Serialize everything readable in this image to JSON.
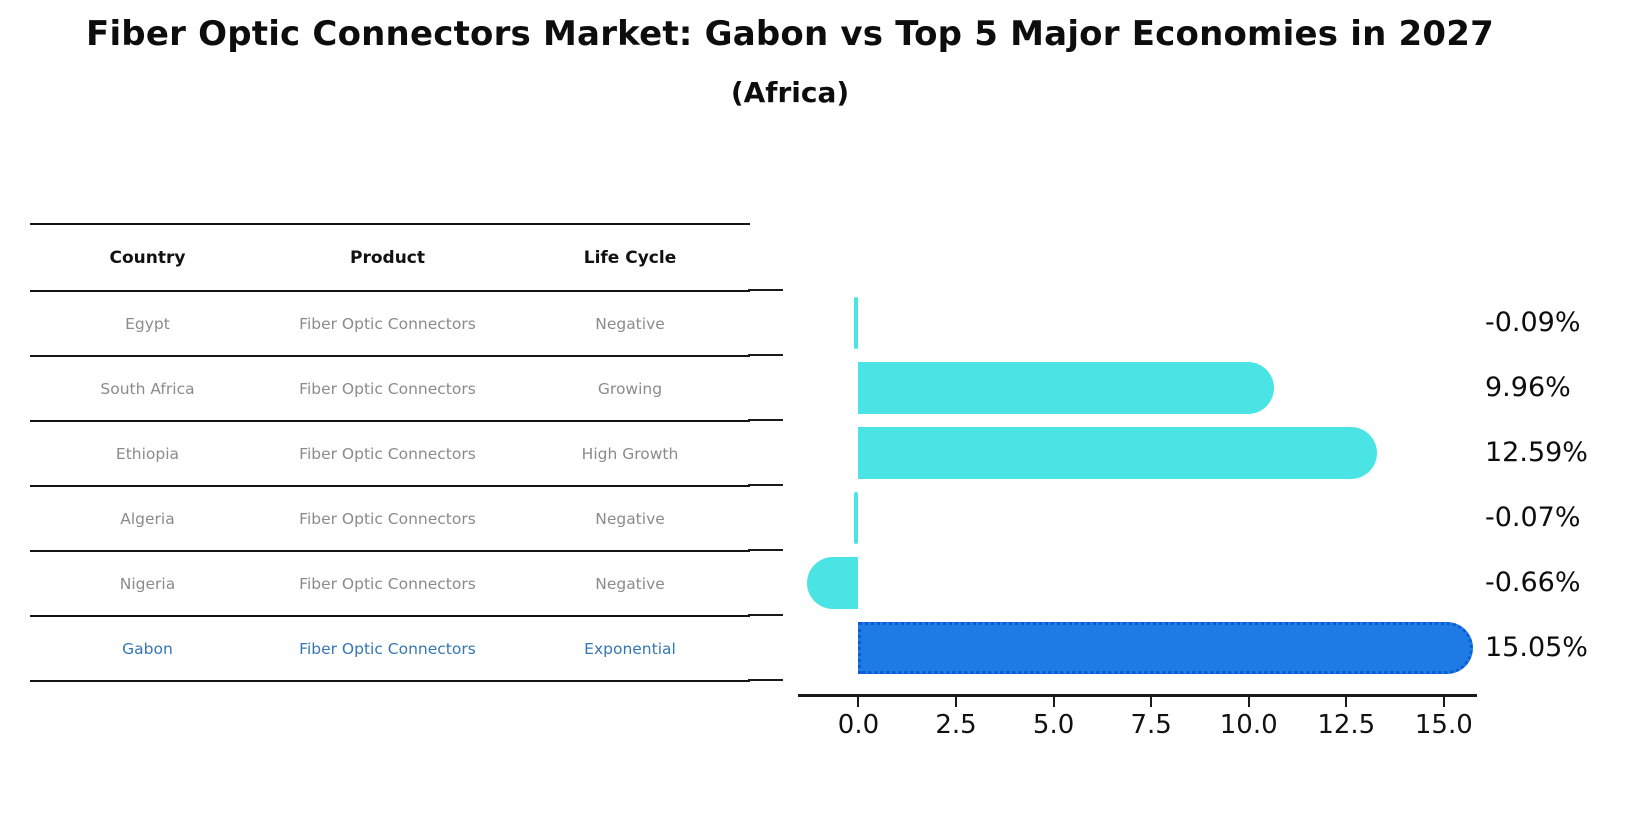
{
  "page": {
    "title": "Fiber Optic Connectors Market: Gabon vs Top 5 Major Economies in 2027",
    "subtitle": "(Africa)"
  },
  "table": {
    "headers": [
      "Country",
      "Product",
      "Life Cycle"
    ],
    "rows": [
      {
        "country": "Egypt",
        "product": "Fiber Optic Connectors",
        "life_cycle": "Negative",
        "highlighted": false
      },
      {
        "country": "South Africa",
        "product": "Fiber Optic Connectors",
        "life_cycle": "Growing",
        "highlighted": false
      },
      {
        "country": "Ethiopia",
        "product": "Fiber Optic Connectors",
        "life_cycle": "High Growth",
        "highlighted": false
      },
      {
        "country": "Algeria",
        "product": "Fiber Optic Connectors",
        "life_cycle": "Negative",
        "highlighted": false
      },
      {
        "country": "Nigeria",
        "product": "Fiber Optic Connectors",
        "life_cycle": "Negative",
        "highlighted": false
      },
      {
        "country": "Gabon",
        "product": "Fiber Optic Connectors",
        "life_cycle": "Exponential",
        "highlighted": true
      }
    ]
  },
  "chart_data": {
    "type": "bar",
    "orientation": "horizontal",
    "title": "Fiber Optic Connectors Market: Gabon vs Top 5 Major Economies in 2027 (Africa)",
    "categories": [
      "Egypt",
      "South Africa",
      "Ethiopia",
      "Algeria",
      "Nigeria",
      "Gabon"
    ],
    "values": [
      -0.09,
      9.96,
      12.59,
      -0.07,
      -0.66,
      15.05
    ],
    "value_labels": [
      "-0.09%",
      "9.96%",
      "12.59%",
      "-0.07%",
      "-0.66%",
      "15.05%"
    ],
    "highlight_index": 5,
    "x_tick_values": [
      0,
      2.5,
      5,
      7.5,
      10,
      12.5,
      15
    ],
    "x_tick_labels": [
      "0.0",
      "2.5",
      "5.0",
      "7.5",
      "10.0",
      "12.5",
      "15.0"
    ],
    "xlim": [
      -1.55,
      15.85
    ],
    "grid": false,
    "legend": null,
    "colors": {
      "bar": "#4AE4E4",
      "highlight_bar": "#1E7AE5",
      "highlight_border": "#0A5BD6",
      "highlight_text": "#3577B4",
      "muted_text": "#8b8b8b",
      "axis": "#1a1a1a",
      "label": "#0d0d0d"
    }
  }
}
